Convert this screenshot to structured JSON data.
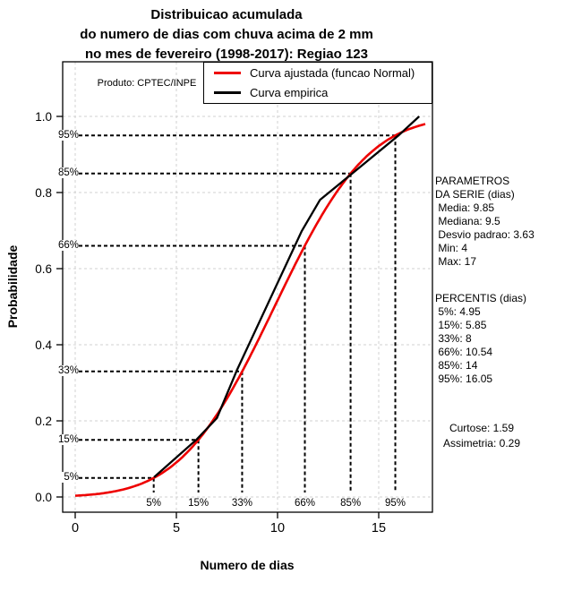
{
  "title": {
    "line1": "Distribuicao acumulada",
    "line2": "do numero de dias com chuva acima de 2 mm",
    "line3": "no mes de fevereiro (1998-2017): Regiao 123"
  },
  "produto_label": "Produto: CPTEC/INPE",
  "legend": {
    "items": [
      {
        "label": "Curva ajustada (funcao Normal)",
        "color": "#ee0000"
      },
      {
        "label": "Curva empirica",
        "color": "#000000"
      }
    ]
  },
  "side_panel": {
    "series_params": [
      "PARAMETROS",
      "DA SERIE (dias)",
      " Media: 9.85",
      " Mediana: 9.5",
      " Desvio padrao: 3.63",
      " Min: 4",
      " Max: 17"
    ],
    "percentis": [
      "PERCENTIS (dias)",
      " 5%: 4.95",
      " 15%: 5.85",
      " 33%: 8",
      " 66%: 10.54",
      " 85%: 14",
      " 95%: 16.05"
    ],
    "moments": [
      "Curtose: 1.59",
      "Assimetria: 0.29"
    ]
  },
  "chart_data": {
    "type": "line",
    "title": "Distribuicao acumulada do numero de dias com chuva acima de 2 mm no mes de fevereiro (1998-2017): Regiao 123",
    "xlabel": "Numero de dias",
    "ylabel": "Probabilidade",
    "xlim": [
      0,
      17.65
    ],
    "ylim": [
      0,
      1.0
    ],
    "x_ticks": [
      0,
      5,
      10,
      15
    ],
    "y_ticks": [
      0,
      0.2,
      0.4,
      0.6,
      0.8,
      1.0
    ],
    "grid": true,
    "grid_color": "#d2d2d2",
    "legend_position": "top-right",
    "series": [
      {
        "name": "Curva ajustada (funcao Normal)",
        "type": "normal_cdf",
        "color": "#ee0000",
        "mean": 9.85,
        "sd": 3.63,
        "x_start": 0,
        "x_end": 17.3
      },
      {
        "name": "Curva empirica",
        "type": "polyline",
        "color": "#000000",
        "points": [
          [
            3.9,
            0.052
          ],
          [
            6,
            0.151
          ],
          [
            7,
            0.207
          ],
          [
            8,
            0.334
          ],
          [
            11.2,
            0.699
          ],
          [
            12.1,
            0.781
          ],
          [
            13.6,
            0.846
          ],
          [
            16,
            0.951
          ],
          [
            17,
            1.0
          ]
        ]
      }
    ],
    "percentile_guides": [
      {
        "label": "5%",
        "p": 0.05,
        "x": 3.88
      },
      {
        "label": "15%",
        "p": 0.15,
        "x": 6.09
      },
      {
        "label": "33%",
        "p": 0.33,
        "x": 8.25
      },
      {
        "label": "66%",
        "p": 0.66,
        "x": 11.35
      },
      {
        "label": "85%",
        "p": 0.85,
        "x": 13.61
      },
      {
        "label": "95%",
        "p": 0.95,
        "x": 15.82
      }
    ],
    "stats": {
      "media": 9.85,
      "mediana": 9.5,
      "desvio_padrao": 3.63,
      "min": 4,
      "max": 17,
      "percentis": {
        "5%": 4.95,
        "15%": 5.85,
        "33%": 8,
        "66%": 10.54,
        "85%": 14,
        "95%": 16.05
      },
      "curtose": 1.59,
      "assimetria": 0.29
    }
  }
}
